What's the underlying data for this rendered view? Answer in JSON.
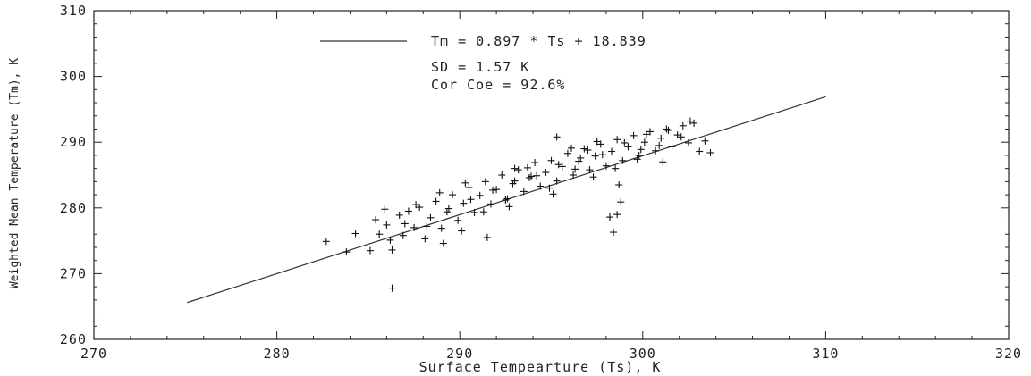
{
  "chart_data": {
    "type": "scatter",
    "title": "",
    "xlabel": "Surface Tempearture (Ts), K",
    "ylabel": "Weighted Mean Temperature (Tm), K",
    "xlim": [
      270,
      320
    ],
    "ylim": [
      260,
      310
    ],
    "x_ticks": [
      "270",
      "280",
      "290",
      "300",
      "310",
      "320"
    ],
    "y_ticks": [
      "260",
      "270",
      "280",
      "290",
      "300",
      "310"
    ],
    "grid": false,
    "legend_position": "top-center",
    "annotations": [
      "Tm = 0.897 * Ts + 18.839",
      "SD = 1.57 K",
      "Cor Coe = 92.6%"
    ],
    "fit_line": {
      "slope": 0.897,
      "intercept": 18.839,
      "x_range": [
        275.1,
        310.0
      ]
    },
    "series": [
      {
        "marker": "+",
        "x": [
          282.7,
          283.8,
          284.3,
          285.4,
          285.9,
          285.1,
          285.6,
          286.0,
          286.3,
          286.7,
          286.9,
          287.2,
          287.5,
          287.8,
          288.1,
          288.4,
          288.7,
          289.0,
          289.3,
          289.6,
          289.9,
          290.2,
          290.5,
          290.8,
          291.1,
          291.4,
          291.7,
          292.0,
          292.3,
          292.6,
          292.9,
          293.2,
          293.5,
          293.8,
          294.1,
          294.4,
          294.7,
          295.0,
          295.3,
          295.6,
          295.9,
          296.2,
          296.5,
          296.8,
          297.1,
          297.4,
          297.7,
          298.0,
          298.3,
          298.6,
          298.9,
          299.2,
          299.5,
          299.8,
          300.1,
          300.4,
          300.7,
          301.0,
          301.3,
          301.6,
          301.9,
          302.2,
          302.5,
          302.8,
          303.1,
          303.4,
          303.7,
          286.2,
          288.2,
          289.4,
          290.6,
          291.8,
          293.0,
          294.2,
          295.4,
          296.6,
          297.8,
          299.0,
          300.2,
          301.4,
          302.6,
          287.0,
          288.9,
          290.1,
          291.3,
          292.5,
          293.7,
          294.9,
          296.1,
          297.3,
          298.5,
          299.7,
          300.9,
          302.1,
          287.6,
          289.1,
          290.3,
          291.5,
          292.7,
          293.9,
          295.1,
          296.3,
          297.5,
          298.7,
          299.9,
          301.1,
          286.3,
          293.0,
          295.3,
          297.0,
          298.2,
          298.8,
          298.4,
          298.6
        ],
        "y": [
          274.9,
          273.3,
          276.1,
          278.2,
          279.8,
          273.5,
          276.0,
          277.4,
          273.6,
          278.9,
          275.8,
          279.5,
          277.0,
          280.1,
          275.3,
          278.5,
          281.0,
          276.9,
          279.4,
          282.0,
          278.1,
          280.7,
          283.1,
          279.3,
          281.9,
          284.0,
          280.6,
          282.8,
          285.0,
          281.4,
          283.7,
          285.8,
          282.5,
          284.6,
          286.9,
          283.3,
          285.4,
          287.2,
          284.1,
          286.3,
          288.3,
          285.0,
          287.1,
          289.0,
          285.8,
          287.9,
          289.7,
          286.4,
          288.6,
          290.4,
          287.2,
          289.3,
          291.0,
          288.0,
          290.0,
          291.6,
          288.7,
          290.6,
          292.0,
          289.3,
          291.1,
          292.5,
          289.9,
          292.9,
          288.6,
          290.2,
          288.4,
          275.1,
          277.2,
          279.9,
          281.3,
          282.7,
          284.1,
          284.9,
          286.6,
          287.6,
          288.1,
          289.9,
          291.2,
          291.8,
          293.2,
          277.6,
          282.3,
          276.5,
          279.4,
          281.2,
          286.1,
          283.0,
          289.1,
          284.7,
          286.0,
          287.4,
          289.5,
          290.8,
          280.5,
          274.6,
          283.8,
          275.5,
          280.2,
          284.8,
          282.1,
          285.9,
          290.1,
          283.5,
          288.9,
          287.0,
          267.8,
          286.0,
          290.8,
          288.8,
          278.6,
          280.9,
          276.3,
          279.0
        ]
      }
    ]
  }
}
